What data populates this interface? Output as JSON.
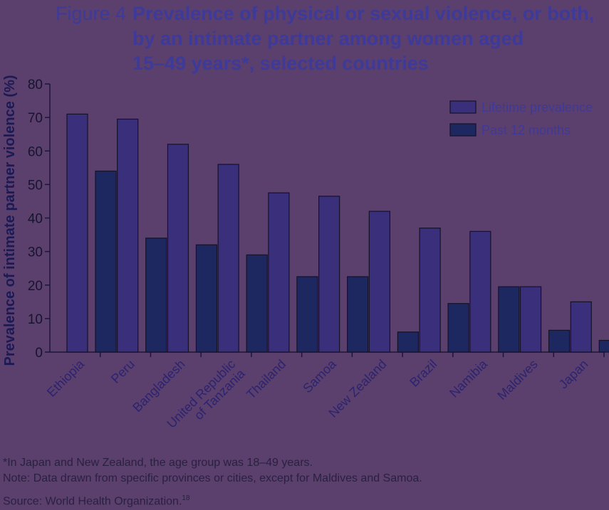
{
  "figure": {
    "label": "Figure 4",
    "title_lines": [
      "Prevalence of physical or sexual violence, or both,",
      "by an intimate partner among women aged",
      "15–49 years*, selected countries"
    ]
  },
  "chart_data": {
    "type": "bar",
    "ylabel": "Prevalence of intimate partner violence (%)",
    "xlabel": "",
    "ylim": [
      0,
      80
    ],
    "yticks": [
      0,
      10,
      20,
      30,
      40,
      50,
      60,
      70,
      80
    ],
    "categories": [
      "Ethiopia",
      "Peru",
      "Bangladesh",
      "United Republic\nof Tanzania",
      "Thailand",
      "Samoa",
      "New Zealand",
      "Brazil",
      "Namibia",
      "Maldives",
      "Japan"
    ],
    "series": [
      {
        "name": "Lifetime prevalence",
        "color": "#3a2f7a",
        "values": [
          71,
          69.5,
          62,
          56,
          47.5,
          46.5,
          42,
          37,
          36,
          19.5,
          15
        ]
      },
      {
        "name": "Past 12 months",
        "color": "#1e2860",
        "values": [
          54,
          34,
          32,
          29,
          22.5,
          22.5,
          6,
          14.5,
          19.5,
          6.5,
          3.5
        ]
      }
    ],
    "legend_position": "top-right",
    "grid": false
  },
  "notes": {
    "footnote": "*In Japan and New Zealand, the age group was 18–49 years.",
    "note": "Note: Data drawn from specific provinces or cities, except for Maldives and Samoa.",
    "source": "Source: World Health Organization.",
    "source_ref": "18"
  }
}
